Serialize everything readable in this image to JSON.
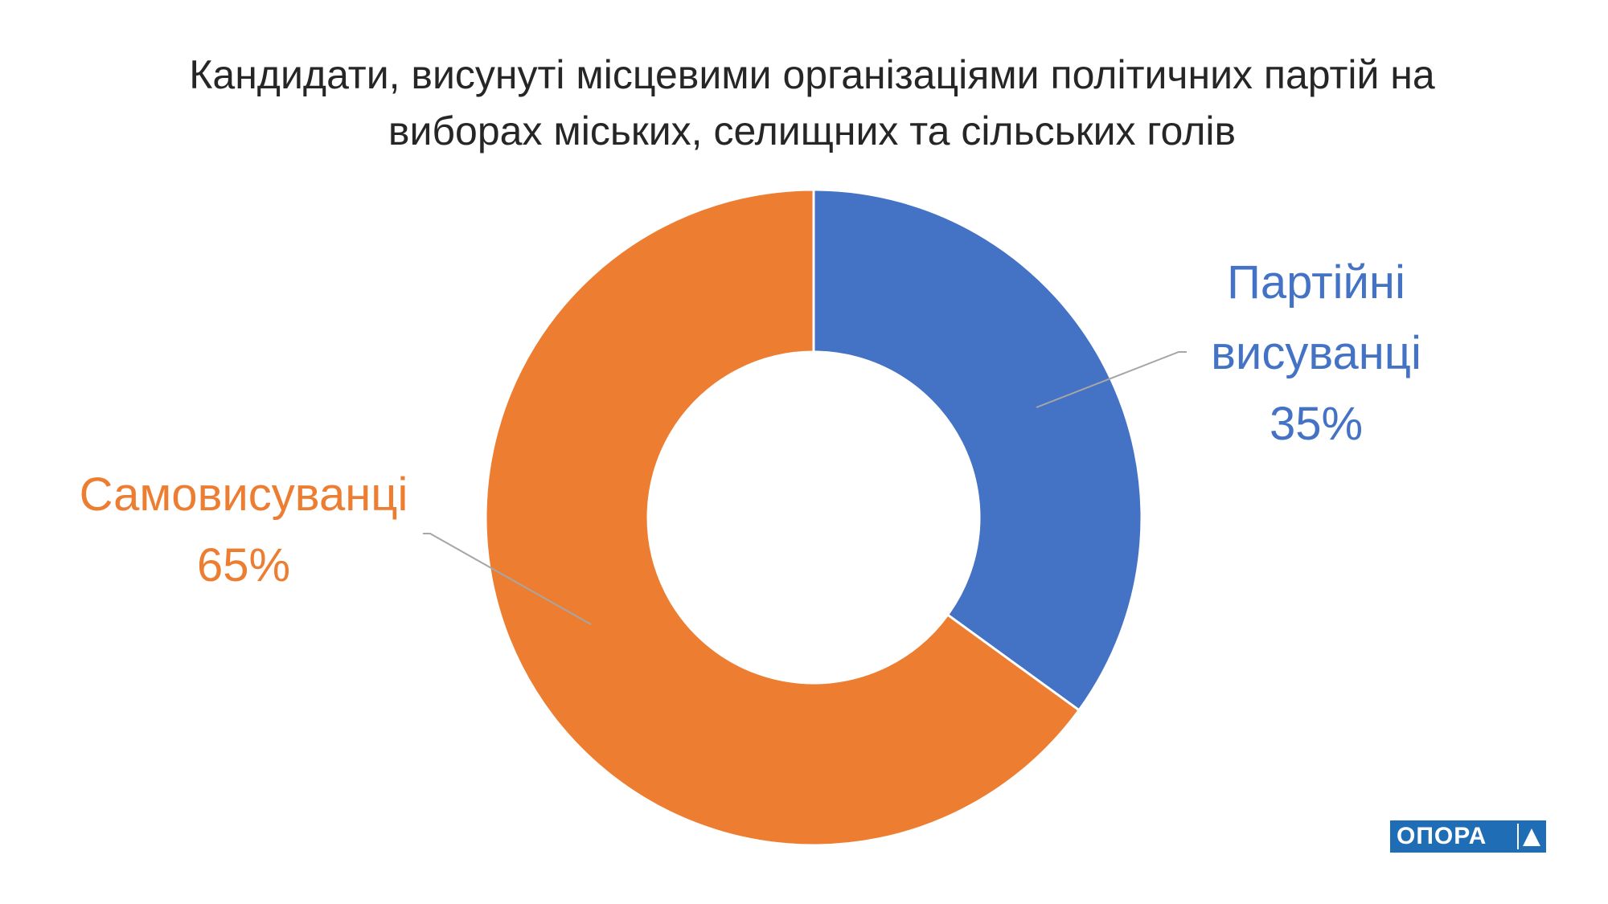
{
  "chart_data": {
    "type": "donut",
    "title": "Кандидати, висунуті місцевими організаціями політичних партій на виборах міських, селищних та сільських голів",
    "categories": [
      "Партійні висуванці",
      "Самовисуванці"
    ],
    "values": [
      35,
      65
    ],
    "value_labels": [
      "35%",
      "65%"
    ],
    "colors": [
      "#4472c4",
      "#ed7d31"
    ]
  },
  "logo": {
    "text": "ОПОРА"
  }
}
